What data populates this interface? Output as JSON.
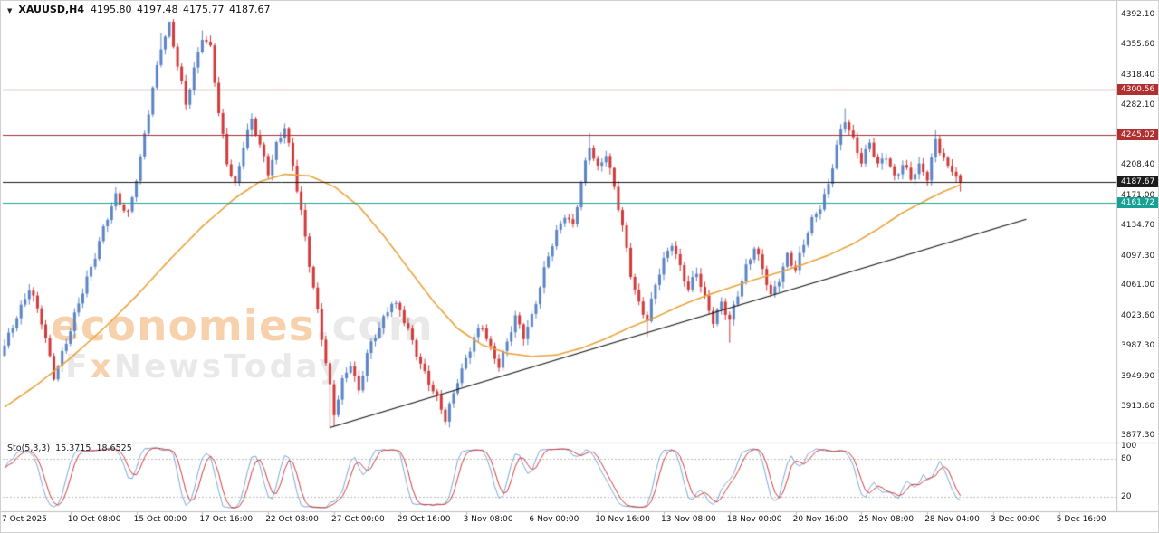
{
  "title": {
    "marker": "▼",
    "symbol": "XAUUSD,H4",
    "ohlc": "4195.80 4197.48 4175.77 4187.67"
  },
  "watermark": {
    "word1": "economies",
    "word1_suffix": ".com",
    "line2_pre": "F",
    "line2_x": "x",
    "line2_post": "NewsToday",
    "orange": "#f0a45c",
    "gray": "#d4d4d4"
  },
  "chart_data": {
    "type": "candlestick",
    "title": "XAUUSD H4 chart with SMA, ascending trendline and Stochastic(5,3,3)",
    "symbol": "XAUUSD",
    "timeframe": "H4",
    "ylim": [
      3877.3,
      4392.1
    ],
    "bars_total": 233,
    "first_open": 3975,
    "last_candle": {
      "open": 4195.8,
      "high": 4197.48,
      "low": 4175.77,
      "close": 4187.67
    },
    "close_keypoints": [
      [
        0,
        3985
      ],
      [
        3,
        4025
      ],
      [
        6,
        4058
      ],
      [
        9,
        4015
      ],
      [
        12,
        3952
      ],
      [
        16,
        4005
      ],
      [
        20,
        4070
      ],
      [
        24,
        4130
      ],
      [
        27,
        4168
      ],
      [
        30,
        4150
      ],
      [
        33,
        4215
      ],
      [
        36,
        4300
      ],
      [
        38,
        4355
      ],
      [
        40,
        4382
      ],
      [
        42,
        4330
      ],
      [
        44,
        4280
      ],
      [
        46,
        4325
      ],
      [
        48,
        4368
      ],
      [
        50,
        4352
      ],
      [
        52,
        4270
      ],
      [
        54,
        4210
      ],
      [
        56,
        4185
      ],
      [
        58,
        4235
      ],
      [
        60,
        4262
      ],
      [
        62,
        4230
      ],
      [
        64,
        4200
      ],
      [
        66,
        4235
      ],
      [
        68,
        4255
      ],
      [
        70,
        4205
      ],
      [
        72,
        4150
      ],
      [
        74,
        4090
      ],
      [
        76,
        4030
      ],
      [
        78,
        3965
      ],
      [
        80,
        3902
      ],
      [
        82,
        3945
      ],
      [
        84,
        3968
      ],
      [
        86,
        3930
      ],
      [
        88,
        3975
      ],
      [
        91,
        4012
      ],
      [
        94,
        4042
      ],
      [
        96,
        4028
      ],
      [
        99,
        3992
      ],
      [
        102,
        3955
      ],
      [
        105,
        3920
      ],
      [
        107,
        3896
      ],
      [
        110,
        3948
      ],
      [
        112,
        3970
      ],
      [
        114,
        3995
      ],
      [
        116,
        4010
      ],
      [
        118,
        3985
      ],
      [
        120,
        3965
      ],
      [
        122,
        3990
      ],
      [
        124,
        4020
      ],
      [
        126,
        4000
      ],
      [
        128,
        4025
      ],
      [
        130,
        4060
      ],
      [
        132,
        4095
      ],
      [
        134,
        4125
      ],
      [
        136,
        4150
      ],
      [
        138,
        4135
      ],
      [
        140,
        4185
      ],
      [
        142,
        4230
      ],
      [
        144,
        4205
      ],
      [
        146,
        4225
      ],
      [
        148,
        4180
      ],
      [
        150,
        4130
      ],
      [
        152,
        4075
      ],
      [
        154,
        4040
      ],
      [
        156,
        4020
      ],
      [
        158,
        4060
      ],
      [
        160,
        4090
      ],
      [
        162,
        4115
      ],
      [
        164,
        4085
      ],
      [
        166,
        4055
      ],
      [
        168,
        4075
      ],
      [
        170,
        4045
      ],
      [
        172,
        4020
      ],
      [
        174,
        4040
      ],
      [
        176,
        4015
      ],
      [
        178,
        4050
      ],
      [
        180,
        4085
      ],
      [
        182,
        4110
      ],
      [
        184,
        4080
      ],
      [
        186,
        4045
      ],
      [
        188,
        4070
      ],
      [
        190,
        4100
      ],
      [
        192,
        4080
      ],
      [
        194,
        4110
      ],
      [
        196,
        4140
      ],
      [
        198,
        4160
      ],
      [
        200,
        4185
      ],
      [
        202,
        4230
      ],
      [
        204,
        4262
      ],
      [
        206,
        4240
      ],
      [
        208,
        4215
      ],
      [
        210,
        4235
      ],
      [
        212,
        4205
      ],
      [
        214,
        4220
      ],
      [
        216,
        4195
      ],
      [
        218,
        4210
      ],
      [
        220,
        4190
      ],
      [
        222,
        4205
      ],
      [
        224,
        4195
      ],
      [
        226,
        4240
      ],
      [
        228,
        4215
      ],
      [
        230,
        4200
      ],
      [
        232,
        4188
      ]
    ],
    "wick_overrides": [
      {
        "i": 12,
        "low": 3944
      },
      {
        "i": 38,
        "high": 4370
      },
      {
        "i": 40,
        "high": 4381
      },
      {
        "i": 48,
        "high": 4373
      },
      {
        "i": 79,
        "low": 3886
      },
      {
        "i": 80,
        "low": 3889
      },
      {
        "i": 107,
        "low": 3890
      },
      {
        "i": 142,
        "high": 4247.3
      },
      {
        "i": 156,
        "low": 3998
      },
      {
        "i": 176,
        "low": 3991
      },
      {
        "i": 204,
        "high": 4277.9
      },
      {
        "i": 226,
        "high": 4251
      }
    ],
    "ma_keypoints": [
      [
        0,
        3912
      ],
      [
        8,
        3940
      ],
      [
        16,
        3972
      ],
      [
        24,
        4008
      ],
      [
        32,
        4048
      ],
      [
        40,
        4092
      ],
      [
        48,
        4133
      ],
      [
        56,
        4168
      ],
      [
        62,
        4188
      ],
      [
        68,
        4197
      ],
      [
        74,
        4195
      ],
      [
        80,
        4182
      ],
      [
        86,
        4158
      ],
      [
        92,
        4122
      ],
      [
        98,
        4082
      ],
      [
        104,
        4042
      ],
      [
        110,
        4008
      ],
      [
        116,
        3988
      ],
      [
        122,
        3978
      ],
      [
        128,
        3974
      ],
      [
        134,
        3976
      ],
      [
        140,
        3984
      ],
      [
        146,
        3996
      ],
      [
        152,
        4010
      ],
      [
        158,
        4022
      ],
      [
        164,
        4036
      ],
      [
        170,
        4048
      ],
      [
        176,
        4058
      ],
      [
        182,
        4068
      ],
      [
        188,
        4077
      ],
      [
        194,
        4087
      ],
      [
        200,
        4098
      ],
      [
        206,
        4112
      ],
      [
        212,
        4130
      ],
      [
        218,
        4150
      ],
      [
        224,
        4166
      ],
      [
        228,
        4176
      ],
      [
        232,
        4184
      ]
    ],
    "trendline": {
      "from_bar": 79,
      "from_price": 3887,
      "to_bar": 248,
      "to_price": 4142,
      "color": "#111111"
    },
    "levels": [
      {
        "price": 4300.56,
        "color": "#9e3039"
      },
      {
        "price": 4245.02,
        "color": "#9e3039"
      },
      {
        "price": 4187.67,
        "color": "#1a1a1a"
      },
      {
        "price": 4161.72,
        "color": "#1fa193"
      }
    ],
    "price_axis": [
      {
        "text": "4392.10"
      },
      {
        "text": "4355.60"
      },
      {
        "text": "4318.40"
      },
      {
        "text": "4300.56",
        "badge": "#b03030"
      },
      {
        "text": "4282.10"
      },
      {
        "text": "4245.02",
        "badge": "#b03030"
      },
      {
        "text": "4208.40"
      },
      {
        "text": "4187.67",
        "badge": "#1c1c1c"
      },
      {
        "text": "4171.00"
      },
      {
        "text": "4161.72",
        "badge": "#17a094"
      },
      {
        "text": "4134.70"
      },
      {
        "text": "4097.30"
      },
      {
        "text": "4061.00"
      },
      {
        "text": "4023.60"
      },
      {
        "text": "3987.30"
      },
      {
        "text": "3949.90"
      },
      {
        "text": "3913.60"
      },
      {
        "text": "3877.30"
      }
    ],
    "time_axis": [
      {
        "i": 0,
        "t": "7 Oct 2025"
      },
      {
        "i": 16,
        "t": "10 Oct 08:00"
      },
      {
        "i": 32,
        "t": "15 Oct 00:00"
      },
      {
        "i": 48,
        "t": "17 Oct 16:00"
      },
      {
        "i": 64,
        "t": "22 Oct 08:00"
      },
      {
        "i": 80,
        "t": "27 Oct 00:00"
      },
      {
        "i": 96,
        "t": "29 Oct 16:00"
      },
      {
        "i": 112,
        "t": "3 Nov 08:00"
      },
      {
        "i": 128,
        "t": "6 Nov 00:00"
      },
      {
        "i": 144,
        "t": "10 Nov 16:00"
      },
      {
        "i": 160,
        "t": "13 Nov 08:00"
      },
      {
        "i": 176,
        "t": "18 Nov 00:00"
      },
      {
        "i": 192,
        "t": "20 Nov 16:00"
      },
      {
        "i": 208,
        "t": "25 Nov 08:00"
      },
      {
        "i": 224,
        "t": "28 Nov 04:00"
      },
      {
        "i": 240,
        "t": "3 Dec 00:00"
      },
      {
        "i": 256,
        "t": "5 Dec 16:00"
      }
    ],
    "stochastic": {
      "label": "Sto(5,3,3)",
      "k_value": "15.3715",
      "d_value": "18.6525",
      "axis_labels": [
        "100",
        "80",
        "20"
      ],
      "overbought": 80,
      "oversold": 20,
      "k_color": "#7aa6d8",
      "d_color": "#cc3b3b"
    },
    "colors": {
      "up": "#5b84c4",
      "down": "#d03a3a",
      "ma": "#e8a33d",
      "frame": "#bdbdbd",
      "dashed_level": "#bbbbbb"
    }
  }
}
